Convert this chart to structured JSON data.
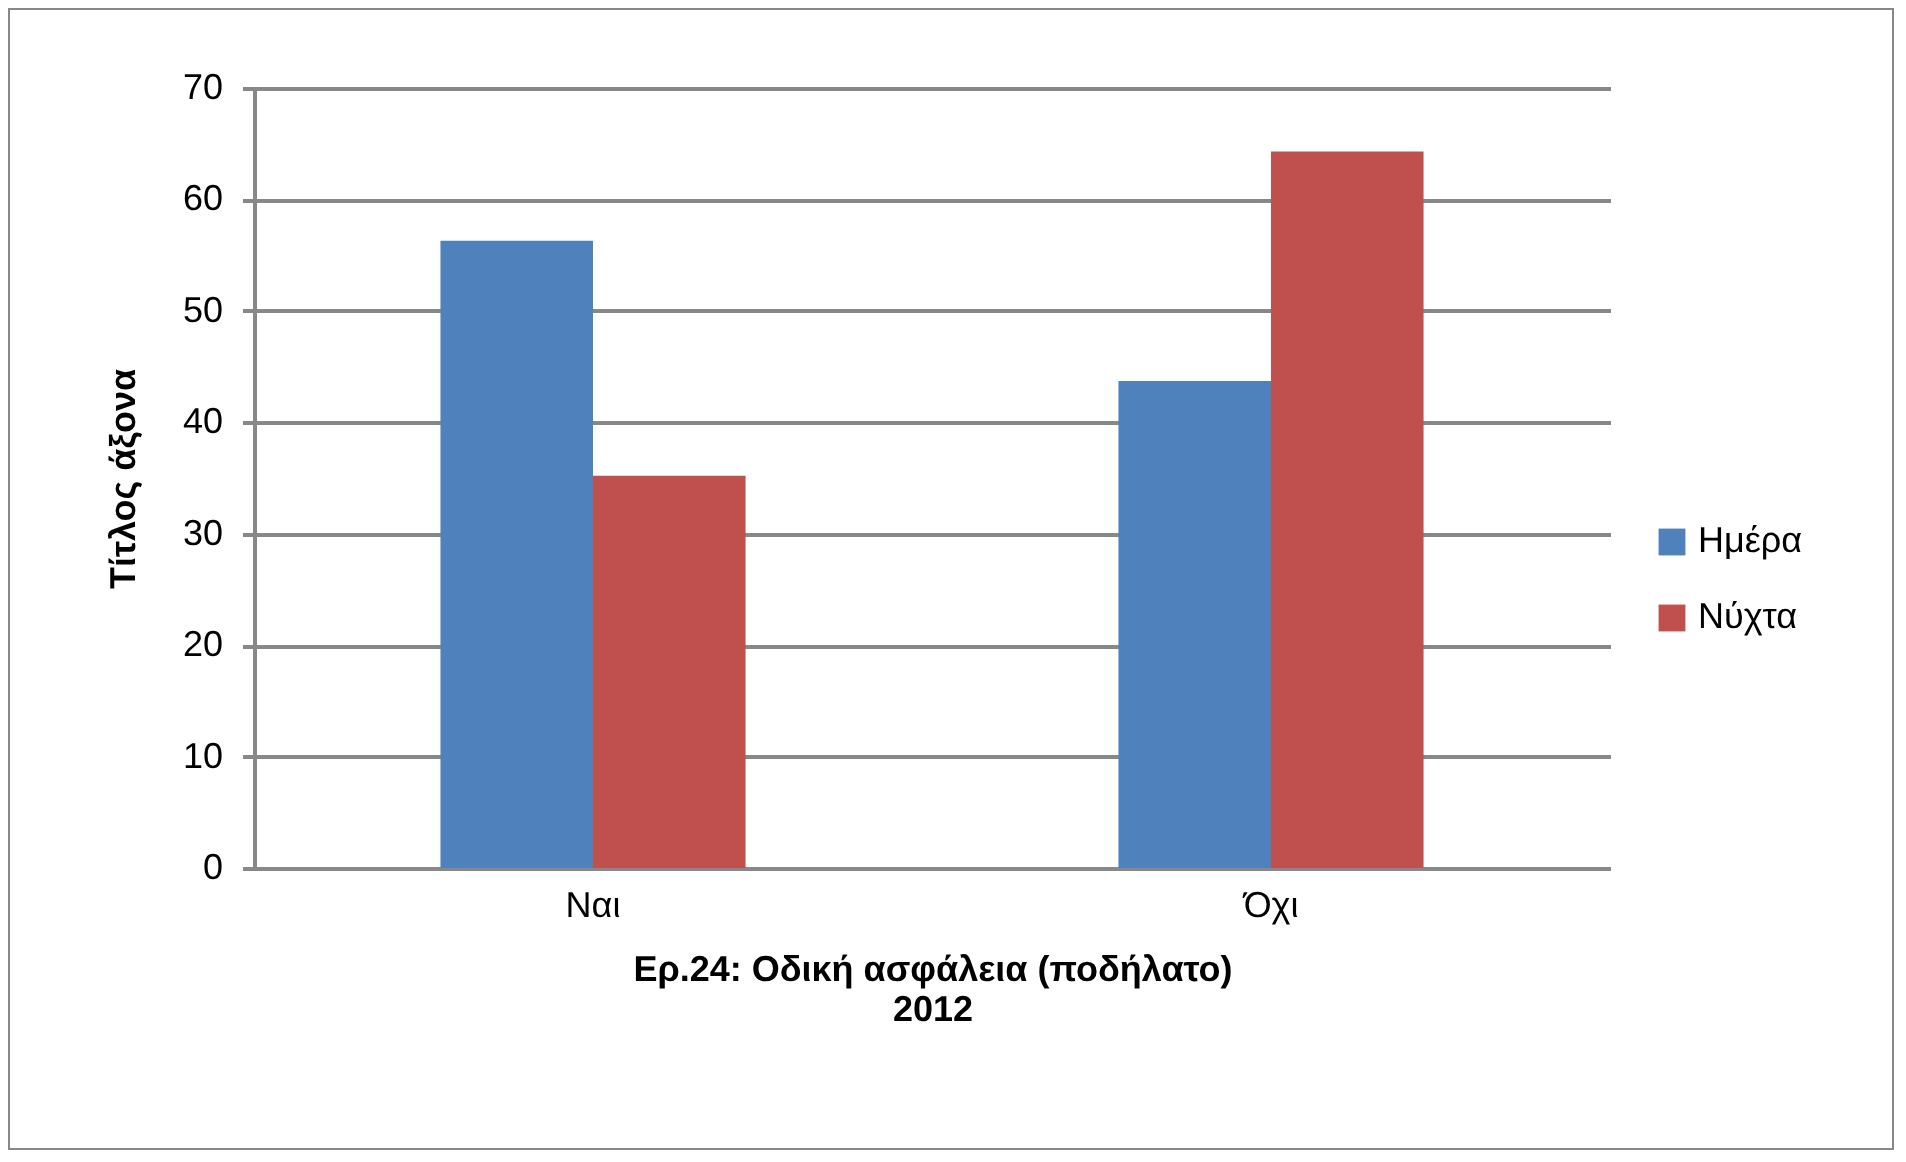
{
  "chart_data": {
    "type": "bar",
    "xlabel": "Ερ.24: Οδική ασφάλεια (ποδήλατο)\n2012",
    "ylabel": "Τίτλος άξονα",
    "categories": [
      "Ναι",
      "Όχι"
    ],
    "series": [
      {
        "name": "Ημέρα",
        "color": "#4f81bd",
        "values": [
          56.3,
          43.7
        ]
      },
      {
        "name": "Νύχτα",
        "color": "#c0504d",
        "values": [
          35.2,
          64.3
        ]
      }
    ],
    "ylim": [
      0,
      70
    ],
    "yticks": [
      0,
      10,
      20,
      30,
      40,
      50,
      60,
      70
    ],
    "grid": "y",
    "legend": "right"
  }
}
